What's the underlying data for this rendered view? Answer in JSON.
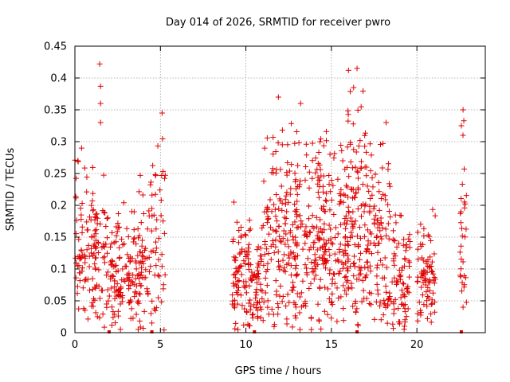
{
  "chart_data": {
    "type": "scatter",
    "title": "Day 014 of 2026, SRMTID for receiver pwro",
    "xlabel": "GPS time / hours",
    "ylabel": "SRMTID / TECUs",
    "xlim": [
      0,
      24
    ],
    "ylim": [
      0,
      0.45
    ],
    "xticks": [
      0,
      5,
      10,
      15,
      20
    ],
    "yticks": [
      0,
      0.05,
      0.1,
      0.15,
      0.2,
      0.25,
      0.3,
      0.35,
      0.4,
      0.45
    ],
    "xtick_labels": [
      "0",
      "5",
      "10",
      "15",
      "20"
    ],
    "ytick_labels": [
      "0",
      "0.05",
      "0.1",
      "0.15",
      "0.2",
      "0.25",
      "0.3",
      "0.35",
      "0.4",
      "0.45"
    ],
    "grid": true,
    "marker": "+",
    "color": "#e00000",
    "clusters": [
      {
        "x_range": [
          0.0,
          1.9
        ],
        "y_range": [
          0.0,
          0.3
        ],
        "n": 140
      },
      {
        "x_range": [
          1.9,
          3.9
        ],
        "y_range": [
          0.0,
          0.21
        ],
        "n": 140
      },
      {
        "x_range": [
          3.7,
          4.8
        ],
        "y_range": [
          0.0,
          0.3
        ],
        "n": 60
      },
      {
        "x_range": [
          4.7,
          5.3
        ],
        "y_range": [
          0.0,
          0.34
        ],
        "n": 30
      },
      {
        "x_range": [
          9.2,
          11.0
        ],
        "y_range": [
          0.0,
          0.2
        ],
        "n": 140
      },
      {
        "x_range": [
          11.0,
          13.0
        ],
        "y_range": [
          0.0,
          0.35
        ],
        "n": 160
      },
      {
        "x_range": [
          12.8,
          14.8
        ],
        "y_range": [
          0.0,
          0.35
        ],
        "n": 160
      },
      {
        "x_range": [
          14.5,
          16.0
        ],
        "y_range": [
          0.0,
          0.31
        ],
        "n": 110
      },
      {
        "x_range": [
          15.8,
          17.0
        ],
        "y_range": [
          0.0,
          0.41
        ],
        "n": 110
      },
      {
        "x_range": [
          17.0,
          18.5
        ],
        "y_range": [
          0.0,
          0.33
        ],
        "n": 120
      },
      {
        "x_range": [
          18.5,
          19.6
        ],
        "y_range": [
          0.0,
          0.2
        ],
        "n": 80
      },
      {
        "x_range": [
          20.0,
          21.1
        ],
        "y_range": [
          0.0,
          0.21
        ],
        "n": 80
      },
      {
        "x_range": [
          22.5,
          22.9
        ],
        "y_range": [
          0.04,
          0.35
        ],
        "n": 30
      }
    ],
    "extreme_points": [
      {
        "x": 1.45,
        "y": 0.422
      },
      {
        "x": 1.5,
        "y": 0.387
      },
      {
        "x": 1.5,
        "y": 0.36
      },
      {
        "x": 1.5,
        "y": 0.33
      },
      {
        "x": 5.1,
        "y": 0.345
      },
      {
        "x": 9.3,
        "y": 0.205
      },
      {
        "x": 11.9,
        "y": 0.37
      },
      {
        "x": 13.2,
        "y": 0.36
      },
      {
        "x": 16.0,
        "y": 0.412
      },
      {
        "x": 16.5,
        "y": 0.415
      },
      {
        "x": 16.3,
        "y": 0.385
      },
      {
        "x": 18.2,
        "y": 0.33
      },
      {
        "x": 22.7,
        "y": 0.35
      },
      {
        "x": 22.6,
        "y": 0.325
      },
      {
        "x": 22.7,
        "y": 0.04
      }
    ],
    "floor_markers": [
      2.0,
      4.5,
      10.5,
      16.5,
      22.6
    ]
  }
}
